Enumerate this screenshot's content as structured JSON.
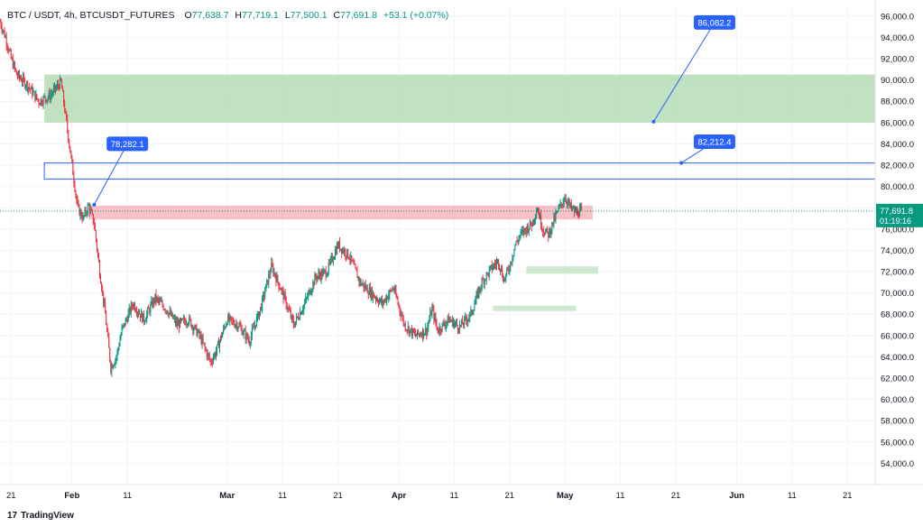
{
  "header": {
    "symbol": "BTC / USDT, 4h, BTCUSDT_FUTURES",
    "o_label": "O",
    "o_value": "77,638.7",
    "h_label": "H",
    "h_value": "77,719.1",
    "l_label": "L",
    "l_value": "77,500.1",
    "c_label": "C",
    "c_value": "77,691.8",
    "change": "+53.1 (+0.07%)"
  },
  "brand": {
    "logo_text": "TradingView"
  },
  "price_badge": {
    "price": "77,691.8",
    "countdown": "01:19:16",
    "color": "#089981"
  },
  "colors": {
    "up": "#089981",
    "down": "#f23645",
    "accent": "#2962ff",
    "green_zone": "#a5d6a7",
    "red_zone": "#f7a6ae"
  },
  "chart_data": {
    "type": "candlestick",
    "symbol": "BTCUSDT_FUTURES",
    "interval": "4h",
    "ylim": [
      52000,
      97000
    ],
    "y_ticks": [
      96000,
      94000,
      92000,
      90000,
      88000,
      86000,
      84000,
      82000,
      80000,
      78000,
      76000,
      74000,
      72000,
      70000,
      68000,
      66000,
      64000,
      62000,
      60000,
      58000,
      56000,
      54000
    ],
    "y_tick_labels": [
      "96,000.0",
      "94,000.0",
      "92,000.0",
      "90,000.0",
      "88,000.0",
      "86,000.0",
      "84,000.0",
      "82,000.0",
      "80,000.0",
      "78,000.0",
      "76,000.0",
      "74,000.0",
      "72,000.0",
      "70,000.0",
      "68,000.0",
      "66,000.0",
      "64,000.0",
      "62,000.0",
      "60,000.0",
      "58,000.0",
      "56,000.0",
      "54,000.0"
    ],
    "x_range": [
      "2025-01-19",
      "2025-06-26"
    ],
    "x_ticks": [
      {
        "date": "2025-01-21",
        "label": "21"
      },
      {
        "date": "2025-02-01",
        "label": "Feb",
        "bold": true
      },
      {
        "date": "2025-02-11",
        "label": "11"
      },
      {
        "date": "2025-03-01",
        "label": "Mar",
        "bold": true
      },
      {
        "date": "2025-03-11",
        "label": "11"
      },
      {
        "date": "2025-03-21",
        "label": "21"
      },
      {
        "date": "2025-04-01",
        "label": "Apr",
        "bold": true
      },
      {
        "date": "2025-04-11",
        "label": "11"
      },
      {
        "date": "2025-04-21",
        "label": "21"
      },
      {
        "date": "2025-05-01",
        "label": "May",
        "bold": true
      },
      {
        "date": "2025-05-11",
        "label": "11"
      },
      {
        "date": "2025-05-21",
        "label": "21"
      },
      {
        "date": "2025-06-01",
        "label": "Jun",
        "bold": true
      },
      {
        "date": "2025-06-11",
        "label": "11"
      },
      {
        "date": "2025-06-21",
        "label": "21"
      }
    ],
    "price_path": [
      [
        "2025-01-19",
        95500
      ],
      [
        "2025-01-20",
        94000
      ],
      [
        "2025-01-21",
        92000
      ],
      [
        "2025-01-22",
        90500
      ],
      [
        "2025-01-24",
        89500
      ],
      [
        "2025-01-26",
        88000
      ],
      [
        "2025-01-28",
        88500
      ],
      [
        "2025-01-30",
        89800
      ],
      [
        "2025-01-31",
        86000
      ],
      [
        "2025-02-01",
        82000
      ],
      [
        "2025-02-02",
        78000
      ],
      [
        "2025-02-03",
        77000
      ],
      [
        "2025-02-04",
        78200
      ],
      [
        "2025-02-05",
        76500
      ],
      [
        "2025-02-06",
        72000
      ],
      [
        "2025-02-07",
        68000
      ],
      [
        "2025-02-08",
        63000
      ],
      [
        "2025-02-09",
        64000
      ],
      [
        "2025-02-10",
        66500
      ],
      [
        "2025-02-12",
        69000
      ],
      [
        "2025-02-14",
        67500
      ],
      [
        "2025-02-16",
        69500
      ],
      [
        "2025-02-18",
        68500
      ],
      [
        "2025-02-20",
        67000
      ],
      [
        "2025-02-22",
        67500
      ],
      [
        "2025-02-24",
        66000
      ],
      [
        "2025-02-26",
        63500
      ],
      [
        "2025-02-27",
        64500
      ],
      [
        "2025-03-01",
        67500
      ],
      [
        "2025-03-03",
        67000
      ],
      [
        "2025-03-05",
        65500
      ],
      [
        "2025-03-07",
        68500
      ],
      [
        "2025-03-09",
        72500
      ],
      [
        "2025-03-11",
        70000
      ],
      [
        "2025-03-13",
        67000
      ],
      [
        "2025-03-15",
        69000
      ],
      [
        "2025-03-17",
        71500
      ],
      [
        "2025-03-19",
        72000
      ],
      [
        "2025-03-21",
        74500
      ],
      [
        "2025-03-23",
        73500
      ],
      [
        "2025-03-25",
        71000
      ],
      [
        "2025-03-27",
        70000
      ],
      [
        "2025-03-29",
        69000
      ],
      [
        "2025-03-31",
        70500
      ],
      [
        "2025-04-02",
        67000
      ],
      [
        "2025-04-04",
        66000
      ],
      [
        "2025-04-06",
        66500
      ],
      [
        "2025-04-07",
        68500
      ],
      [
        "2025-04-08",
        66500
      ],
      [
        "2025-04-10",
        67500
      ],
      [
        "2025-04-12",
        66800
      ],
      [
        "2025-04-14",
        68000
      ],
      [
        "2025-04-16",
        71000
      ],
      [
        "2025-04-18",
        72500
      ],
      [
        "2025-04-19",
        73000
      ],
      [
        "2025-04-20",
        71200
      ],
      [
        "2025-04-21",
        72500
      ],
      [
        "2025-04-22",
        74500
      ],
      [
        "2025-04-23",
        75500
      ],
      [
        "2025-04-24",
        76000
      ],
      [
        "2025-04-25",
        76500
      ],
      [
        "2025-04-26",
        78000
      ],
      [
        "2025-04-27",
        76000
      ],
      [
        "2025-04-28",
        75500
      ],
      [
        "2025-04-29",
        76800
      ],
      [
        "2025-04-30",
        78000
      ],
      [
        "2025-05-01",
        79000
      ],
      [
        "2025-05-02",
        78000
      ],
      [
        "2025-05-03",
        77500
      ],
      [
        "2025-05-04",
        77691.8
      ]
    ],
    "zones": [
      {
        "name": "green-supply-zone",
        "type": "filled",
        "color": "#a5d6a7",
        "x0": "2025-01-27",
        "x1": "2025-06-26",
        "y0": 86000,
        "y1": 90500
      },
      {
        "name": "blue-outline-zone",
        "type": "outline",
        "color": "#2962ff",
        "x0": "2025-01-27",
        "x1": "2025-06-26",
        "y0": 80700,
        "y1": 82200
      },
      {
        "name": "red-resistance-zone",
        "type": "filled",
        "color": "#f7a6ae",
        "x0": "2025-02-04",
        "x1": "2025-05-06",
        "y0": 76900,
        "y1": 78200
      },
      {
        "name": "green-demand-zone-upper",
        "type": "filled",
        "color": "#b9dfb9",
        "x0": "2025-04-24",
        "x1": "2025-05-07",
        "y0": 71800,
        "y1": 72500
      },
      {
        "name": "green-demand-zone-lower",
        "type": "filled",
        "color": "#b9dfb9",
        "x0": "2025-04-18",
        "x1": "2025-05-03",
        "y0": 68300,
        "y1": 68800
      }
    ],
    "callouts": [
      {
        "name": "callout-78282",
        "text": "78,282.1",
        "anchor_date": "2025-02-05",
        "anchor_price": 78282.1,
        "label_date": "2025-02-11",
        "label_price": 84000
      },
      {
        "name": "callout-86082",
        "text": "86,082.2",
        "anchor_date": "2025-05-17",
        "anchor_price": 86082.2,
        "label_date": "2025-05-28",
        "label_price": 95400
      },
      {
        "name": "callout-82212",
        "text": "82,212.4",
        "anchor_date": "2025-05-22",
        "anchor_price": 82212.4,
        "label_date": "2025-05-28",
        "label_price": 84200
      }
    ],
    "last_price": 77691.8
  }
}
